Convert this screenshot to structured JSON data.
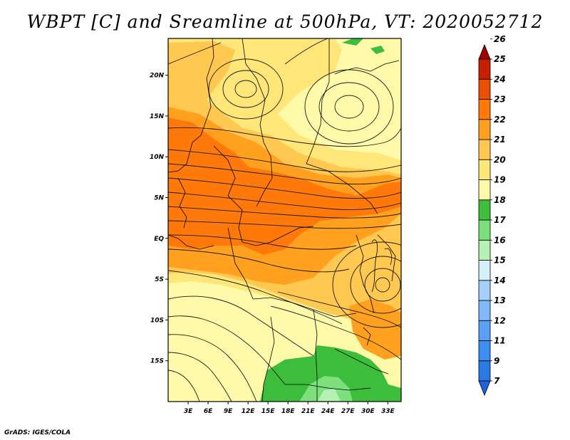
{
  "title": "WBPT [C] and Sreamline at 500hPa, VT: 2020052712",
  "credit": "GrADS: IGES/COLA",
  "chart_data": {
    "type": "heatmap",
    "variable": "WBPT [C]",
    "overlay": "Streamline",
    "level": "500hPa",
    "valid_time": "2020052712",
    "lon_range": [
      0,
      35
    ],
    "lat_range": [
      -20,
      24.5
    ],
    "lon_ticks": [
      3,
      6,
      9,
      12,
      15,
      18,
      21,
      24,
      27,
      30,
      33
    ],
    "lon_labels": [
      "3E",
      "6E",
      "9E",
      "12E",
      "15E",
      "18E",
      "21E",
      "24E",
      "27E",
      "30E",
      "33E"
    ],
    "lat_ticks": [
      20,
      15,
      10,
      5,
      0,
      -5,
      -10,
      -15
    ],
    "lat_labels": [
      "20N",
      "15N",
      "10N",
      "5N",
      "EQ",
      "5S",
      "10S",
      "15S"
    ],
    "colorbar": {
      "labels": [
        "7",
        "9",
        "11",
        "12",
        "13",
        "14",
        "15",
        "16",
        "17",
        "18",
        "19",
        "20",
        "21",
        "22",
        "23",
        "24",
        "25",
        "26"
      ],
      "colors": [
        "#1e64dc",
        "#2a7ae6",
        "#3c8ef0",
        "#5aa0f5",
        "#80b9f8",
        "#a6d0fa",
        "#d6f0fa",
        "#b5f0b5",
        "#7de07d",
        "#3cbe3c",
        "#fffaaa",
        "#ffe678",
        "#ffc850",
        "#ffa01e",
        "#ff780a",
        "#e65000",
        "#c81e00",
        "#a00000"
      ]
    }
  }
}
